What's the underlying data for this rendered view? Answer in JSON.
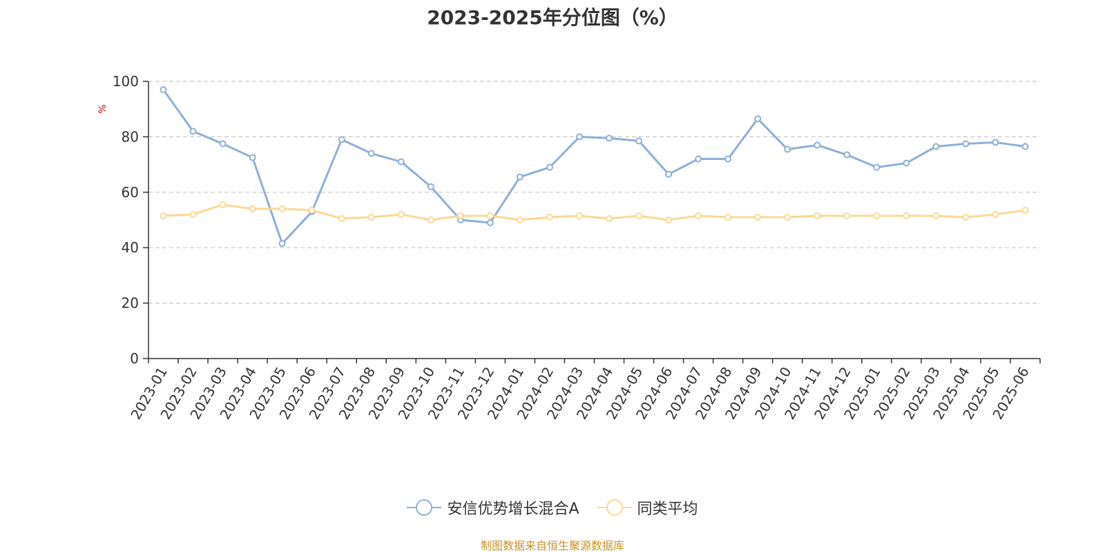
{
  "title": "2023-2025年分位图（%）",
  "source": "制图数据来自恒生聚源数据库",
  "colors": {
    "series_a": "#8eafd8",
    "series_b": "#fcd893",
    "grid": "#c8c8c8",
    "axis": "#333333",
    "unit": "#e00000",
    "source": "#c8902a"
  },
  "chart_data": {
    "type": "line",
    "title": "2023-2025年分位图（%）",
    "ylabel": "%",
    "ylim": [
      0,
      100
    ],
    "yticks": [
      "0",
      "20",
      "40",
      "60",
      "80",
      "100"
    ],
    "grid": true,
    "legend_position": "bottom-center",
    "categories": [
      "2023-01",
      "2023-02",
      "2023-03",
      "2023-04",
      "2023-05",
      "2023-06",
      "2023-07",
      "2023-08",
      "2023-09",
      "2023-10",
      "2023-11",
      "2023-12",
      "2024-01",
      "2024-02",
      "2024-03",
      "2024-04",
      "2024-05",
      "2024-06",
      "2024-07",
      "2024-08",
      "2024-09",
      "2024-10",
      "2024-11",
      "2024-12",
      "2025-01",
      "2025-02",
      "2025-03",
      "2025-04",
      "2025-05",
      "2025-06"
    ],
    "series": [
      {
        "name": "安信优势增长混合A",
        "values": [
          97,
          82,
          77.5,
          72.5,
          41.5,
          53,
          79,
          74,
          71,
          62,
          50,
          49,
          65.5,
          69,
          80,
          79.5,
          78.5,
          66.5,
          72,
          72,
          86.5,
          75.5,
          77,
          73.5,
          69,
          70.5,
          76.5,
          77.5,
          78,
          76.5
        ]
      },
      {
        "name": "同类平均",
        "values": [
          51.5,
          52,
          55.5,
          54,
          54,
          53.5,
          50.5,
          51,
          52,
          50,
          51.5,
          51.5,
          50,
          51,
          51.5,
          50.5,
          51.5,
          50,
          51.5,
          51,
          51,
          51,
          51.5,
          51.5,
          51.5,
          51.5,
          51.5,
          51,
          52,
          53.5
        ]
      }
    ]
  }
}
